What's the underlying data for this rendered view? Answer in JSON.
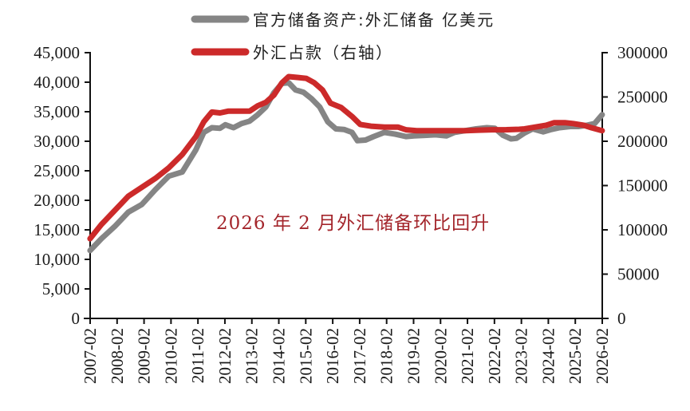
{
  "chart_data": {
    "type": "line",
    "title": "",
    "legend": {
      "position": "top",
      "entries": [
        {
          "name": "官方储备资产:外汇储备 亿美元",
          "color": "#858585",
          "axis": "left"
        },
        {
          "name": "外汇占款（右轴）",
          "color": "#cc2a2a",
          "axis": "right"
        }
      ]
    },
    "annotation": "2026 年 2 月外汇储备环比回升",
    "annotation_color": "#a4262c",
    "x_axis": {
      "label": "",
      "tick_labels": [
        "2007-02",
        "2008-02",
        "2009-02",
        "2010-02",
        "2011-02",
        "2012-02",
        "2013-02",
        "2014-02",
        "2015-02",
        "2016-02",
        "2017-02",
        "2018-02",
        "2019-02",
        "2020-02",
        "2021-02",
        "2022-02",
        "2023-02",
        "2024-02",
        "2025-02",
        "2026-02"
      ],
      "range": [
        2007.083,
        2026.083
      ]
    },
    "y_axis_left": {
      "label": "",
      "ylim": [
        0,
        45000
      ],
      "tick_labels": [
        "0",
        "5,000",
        "10,000",
        "15,000",
        "20,000",
        "25,000",
        "30,000",
        "35,000",
        "40,000",
        "45,000"
      ],
      "ticks": [
        0,
        5000,
        10000,
        15000,
        20000,
        25000,
        30000,
        35000,
        40000,
        45000
      ]
    },
    "y_axis_right": {
      "label": "",
      "ylim": [
        0,
        300000
      ],
      "tick_labels": [
        "0",
        "50000",
        "100000",
        "150000",
        "200000",
        "250000",
        "300000"
      ],
      "ticks": [
        0,
        50000,
        100000,
        150000,
        200000,
        250000,
        300000
      ]
    },
    "grid": false,
    "series": [
      {
        "name": "官方储备资产:外汇储备 亿美元",
        "axis": "left",
        "color": "#858585",
        "x": [
          2007.08,
          2007.5,
          2008.0,
          2008.5,
          2009.0,
          2009.5,
          2010.0,
          2010.5,
          2011.0,
          2011.3,
          2011.6,
          2011.9,
          2012.1,
          2012.4,
          2012.7,
          2013.0,
          2013.3,
          2013.6,
          2013.9,
          2014.2,
          2014.45,
          2014.7,
          2015.0,
          2015.3,
          2015.6,
          2015.9,
          2016.2,
          2016.5,
          2016.8,
          2017.0,
          2017.3,
          2017.6,
          2018.0,
          2018.4,
          2018.8,
          2019.1,
          2019.5,
          2019.9,
          2020.3,
          2020.6,
          2021.0,
          2021.4,
          2021.8,
          2022.1,
          2022.4,
          2022.7,
          2022.9,
          2023.2,
          2023.5,
          2023.9,
          2024.2,
          2024.5,
          2024.9,
          2025.2,
          2025.5,
          2025.8,
          2026.08
        ],
        "values": [
          11500,
          13500,
          15600,
          18000,
          19300,
          21800,
          24100,
          24800,
          28500,
          31500,
          32300,
          32200,
          32800,
          32300,
          33000,
          33400,
          34500,
          35800,
          38200,
          39800,
          39900,
          38700,
          38300,
          37200,
          35800,
          33300,
          32100,
          32000,
          31500,
          30100,
          30200,
          30800,
          31500,
          31200,
          30800,
          30900,
          31000,
          31100,
          30900,
          31500,
          31800,
          32100,
          32300,
          32200,
          31000,
          30400,
          30500,
          31400,
          32100,
          31600,
          32000,
          32300,
          32500,
          32500,
          32700,
          33000,
          34500
        ]
      },
      {
        "name": "外汇占款（右轴）",
        "axis": "right",
        "color": "#cc2a2a",
        "x": [
          2007.08,
          2007.5,
          2008.0,
          2008.5,
          2009.0,
          2009.5,
          2010.0,
          2010.5,
          2011.0,
          2011.3,
          2011.6,
          2011.9,
          2012.2,
          2012.6,
          2013.0,
          2013.3,
          2013.6,
          2013.9,
          2014.2,
          2014.45,
          2014.8,
          2015.1,
          2015.4,
          2015.7,
          2016.0,
          2016.4,
          2016.8,
          2017.1,
          2017.5,
          2018.0,
          2018.5,
          2018.8,
          2019.2,
          2019.8,
          2020.5,
          2021.0,
          2021.5,
          2022.0,
          2022.5,
          2023.0,
          2023.2,
          2023.6,
          2024.0,
          2024.3,
          2024.7,
          2025.0,
          2025.4,
          2025.7,
          2026.08
        ],
        "values": [
          90000,
          106000,
          122000,
          138000,
          148000,
          158000,
          170000,
          185000,
          205000,
          222000,
          233000,
          232000,
          234000,
          234000,
          234000,
          240000,
          244000,
          252000,
          266000,
          273000,
          272000,
          271000,
          266000,
          258000,
          243000,
          238000,
          228000,
          219000,
          217000,
          216000,
          216000,
          213000,
          212000,
          212000,
          212000,
          212000,
          212500,
          213000,
          213000,
          213500,
          214000,
          216000,
          218000,
          221000,
          221000,
          220000,
          218000,
          215000,
          212000
        ]
      }
    ]
  },
  "legend": {
    "gray_label": "官方储备资产:外汇储备 亿美元",
    "red_label": "外汇占款（右轴）"
  },
  "annotation_text": "2026 年 2 月外汇储备环比回升"
}
